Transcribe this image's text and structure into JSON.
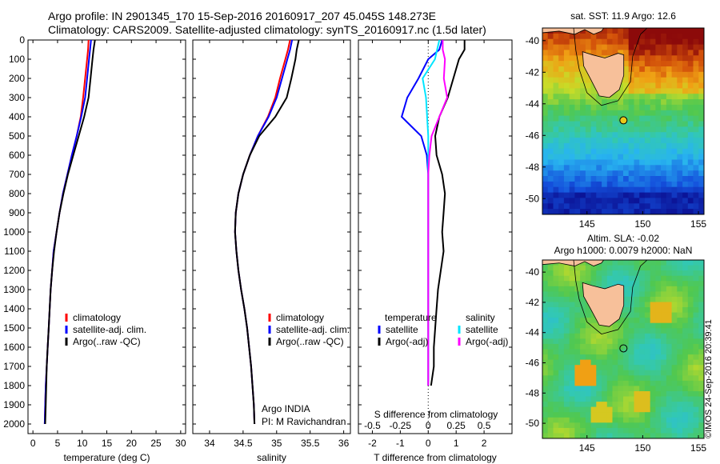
{
  "header": {
    "line1": "Argo profile: IN 2901345_170 15-Sep-2016 20160917_207 45.045S 148.273E",
    "line2": "Climatology: CARS2009. Satellite-adjusted climatology: synTS_20160917.nc (1.5d later)"
  },
  "colors": {
    "climatology": "#ff0000",
    "satellite": "#0000ff",
    "argo": "#000000",
    "salinity_satellite": "#00e5ff",
    "salinity_argo": "#ff00ff",
    "land": "#f7c09a"
  },
  "stamp": "©IMOS 24-Sep-2016 20:39:41",
  "float_info": {
    "line1": "Argo INDIA",
    "line2": "PI: M Ravichandran"
  },
  "chart_data": [
    {
      "type": "line",
      "panel": "temperature",
      "xlabel": "temperature (deg C)",
      "xlim": [
        -1,
        31
      ],
      "xticks": [
        "0",
        "5",
        "10",
        "15",
        "20",
        "25",
        "30"
      ],
      "ylim": [
        0,
        2050
      ],
      "yticks": [
        "0",
        "100",
        "200",
        "300",
        "400",
        "500",
        "600",
        "700",
        "800",
        "900",
        "1000",
        "1100",
        "1200",
        "1300",
        "1400",
        "1500",
        "1600",
        "1700",
        "1800",
        "1900",
        "2000"
      ],
      "yreversed": true,
      "legend": [
        "climatology",
        "satellite-adj. clim.",
        "Argo(..raw -QC)"
      ],
      "series": [
        {
          "name": "climatology",
          "color": "#ff0000",
          "x": [
            11.3,
            11.2,
            11.0,
            10.6,
            10.2,
            9.7,
            8.9,
            7.9,
            7.0,
            6.1,
            5.4,
            4.8,
            4.2,
            3.9,
            3.6,
            3.4,
            3.2,
            3.0,
            2.8,
            2.6,
            2.5,
            2.4
          ],
          "y": [
            0,
            50,
            100,
            200,
            300,
            400,
            500,
            600,
            700,
            800,
            900,
            1000,
            1100,
            1200,
            1300,
            1400,
            1500,
            1600,
            1700,
            1800,
            1900,
            2000
          ]
        },
        {
          "name": "satellite-adj. clim.",
          "color": "#0000ff",
          "x": [
            11.8,
            11.6,
            11.4,
            11.0,
            10.6,
            9.8,
            8.9,
            7.9,
            7.0,
            6.1,
            5.4,
            4.8,
            4.2,
            3.9,
            3.6,
            3.4,
            3.2,
            3.0,
            2.8,
            2.6,
            2.5,
            2.4
          ],
          "y": [
            0,
            50,
            100,
            200,
            300,
            400,
            500,
            600,
            700,
            800,
            900,
            1000,
            1100,
            1200,
            1300,
            1400,
            1500,
            1600,
            1700,
            1800,
            1900,
            2000
          ]
        },
        {
          "name": "Argo(..raw -QC)",
          "color": "#000000",
          "x": [
            12.6,
            12.3,
            12.1,
            11.7,
            11.3,
            10.4,
            9.3,
            8.2,
            7.1,
            6.2,
            5.4,
            4.8,
            4.3,
            3.9,
            3.6,
            3.4,
            3.2,
            3.0,
            2.8,
            2.7,
            2.6,
            2.5
          ],
          "y": [
            0,
            50,
            100,
            200,
            300,
            400,
            500,
            600,
            700,
            800,
            900,
            1000,
            1100,
            1200,
            1300,
            1400,
            1500,
            1600,
            1700,
            1800,
            1900,
            2000
          ]
        }
      ]
    },
    {
      "type": "line",
      "panel": "salinity",
      "xlabel": "salinity",
      "xlim": [
        33.75,
        36.1
      ],
      "xticks": [
        "34",
        "34.5",
        "35",
        "35.5",
        "36"
      ],
      "ylim": [
        0,
        2050
      ],
      "yreversed": true,
      "legend": [
        "climatology",
        "satellite-adj. clim.",
        "Argo(..raw -QC)"
      ],
      "series": [
        {
          "name": "climatology",
          "color": "#ff0000",
          "x": [
            35.2,
            35.17,
            35.13,
            35.05,
            34.98,
            34.87,
            34.72,
            34.6,
            34.5,
            34.43,
            34.39,
            34.38,
            34.4,
            34.43,
            34.47,
            34.52,
            34.56,
            34.59,
            34.62,
            34.64,
            34.66,
            34.67
          ],
          "y": [
            0,
            50,
            100,
            200,
            300,
            400,
            500,
            600,
            700,
            800,
            900,
            1000,
            1100,
            1200,
            1300,
            1400,
            1500,
            1600,
            1700,
            1800,
            1900,
            2000
          ]
        },
        {
          "name": "satellite-adj. clim.",
          "color": "#0000ff",
          "x": [
            35.23,
            35.2,
            35.16,
            35.08,
            35.0,
            34.88,
            34.72,
            34.6,
            34.5,
            34.43,
            34.39,
            34.38,
            34.4,
            34.43,
            34.47,
            34.52,
            34.56,
            34.59,
            34.62,
            34.64,
            34.66,
            34.67
          ],
          "y": [
            0,
            50,
            100,
            200,
            300,
            400,
            500,
            600,
            700,
            800,
            900,
            1000,
            1100,
            1200,
            1300,
            1400,
            1500,
            1600,
            1700,
            1800,
            1900,
            2000
          ]
        },
        {
          "name": "Argo(..raw -QC)",
          "color": "#000000",
          "x": [
            35.33,
            35.3,
            35.28,
            35.22,
            35.15,
            34.98,
            34.74,
            34.6,
            34.5,
            34.43,
            34.39,
            34.38,
            34.4,
            34.43,
            34.47,
            34.52,
            34.56,
            34.59,
            34.62,
            34.64,
            34.66,
            34.67
          ],
          "y": [
            0,
            50,
            100,
            200,
            300,
            400,
            500,
            600,
            700,
            800,
            900,
            1000,
            1100,
            1200,
            1300,
            1400,
            1500,
            1600,
            1700,
            1800,
            1900,
            2000
          ]
        }
      ]
    },
    {
      "type": "line",
      "panel": "difference",
      "xlabel": "T difference from climatology",
      "xlabel_top": "S difference from climatology",
      "xlim": [
        -2.5,
        3
      ],
      "xticks": [
        "-2",
        "-1",
        "0",
        "1",
        "2"
      ],
      "xticks_top": [
        "-0.5",
        "-0.25",
        "0",
        "0.25",
        "0.5"
      ],
      "ylim": [
        0,
        2050
      ],
      "yreversed": true,
      "legend_titles": [
        "temperature",
        "salinity"
      ],
      "legend": [
        "satellite",
        "Argo(-adj)",
        "satellite",
        "Argo(-adj)"
      ],
      "series": [
        {
          "name": "temperature satellite",
          "color": "#0000ff",
          "x": [
            0.5,
            0.4,
            0.0,
            -0.35,
            -0.75,
            -0.95,
            -0.25,
            -0.05,
            0.0,
            0.0,
            0.0,
            0.0,
            0.0,
            0.0,
            0.0,
            0.0,
            0.0,
            0.0,
            0.0,
            0.0
          ],
          "y": [
            0,
            50,
            100,
            200,
            300,
            400,
            500,
            600,
            700,
            800,
            900,
            1000,
            1100,
            1200,
            1300,
            1400,
            1500,
            1600,
            1700,
            1800
          ]
        },
        {
          "name": "temperature Argo(-adj)",
          "color": "#000000",
          "x": [
            1.3,
            1.3,
            1.1,
            0.9,
            0.7,
            0.4,
            0.25,
            0.3,
            0.5,
            0.6,
            0.55,
            0.5,
            0.55,
            0.45,
            0.35,
            0.3,
            0.25,
            0.2,
            0.2,
            0.1
          ],
          "y": [
            0,
            50,
            100,
            200,
            300,
            400,
            500,
            600,
            700,
            800,
            900,
            1000,
            1100,
            1200,
            1300,
            1400,
            1500,
            1600,
            1700,
            1800
          ]
        },
        {
          "name": "salinity satellite",
          "color": "#00e5ff",
          "x": [
            0.1,
            0.08,
            0.06,
            -0.05,
            -0.02,
            -0.01,
            0.0,
            0.0,
            0.0,
            0.0,
            0.0,
            0.0,
            0.0,
            0.0,
            0.0,
            0.0,
            0.0,
            0.0,
            0.0,
            0.0
          ],
          "y": [
            0,
            50,
            100,
            200,
            300,
            400,
            500,
            600,
            700,
            800,
            900,
            1000,
            1100,
            1200,
            1300,
            1400,
            1500,
            1600,
            1700,
            1800
          ]
        },
        {
          "name": "salinity Argo(-adj)",
          "color": "#ff00ff",
          "x": [
            0.13,
            0.13,
            0.15,
            0.14,
            0.17,
            0.1,
            0.03,
            0.01,
            0.0,
            0.0,
            0.0,
            0.0,
            0.0,
            0.0,
            0.0,
            0.0,
            0.0,
            0.0,
            0.0,
            0.0
          ],
          "y": [
            0,
            50,
            100,
            200,
            300,
            400,
            500,
            600,
            700,
            800,
            900,
            1000,
            1100,
            1200,
            1300,
            1400,
            1500,
            1600,
            1700,
            1800
          ]
        }
      ]
    },
    {
      "type": "heatmap",
      "panel": "sst_map",
      "title": "sat. SST: 11.9 Argo: 12.6",
      "xlim": [
        141,
        155.5
      ],
      "ylim": [
        -51,
        -39.2
      ],
      "xticks": [
        "145",
        "150",
        "155"
      ],
      "yticks": [
        "-40",
        "-42",
        "-44",
        "-46",
        "-48",
        "-50"
      ],
      "marker": {
        "lon": 148.273,
        "lat": -45.045
      }
    },
    {
      "type": "heatmap",
      "panel": "sla_map",
      "title_line1": "Altim. SLA: -0.02",
      "title_line2": "Argo h1000: 0.0079 h2000: NaN",
      "xlim": [
        141,
        155.5
      ],
      "ylim": [
        -51,
        -39.2
      ],
      "xticks": [
        "145",
        "150",
        "155"
      ],
      "yticks": [
        "-40",
        "-42",
        "-44",
        "-46",
        "-48",
        "-50"
      ],
      "marker": {
        "lon": 148.273,
        "lat": -45.045
      }
    }
  ]
}
